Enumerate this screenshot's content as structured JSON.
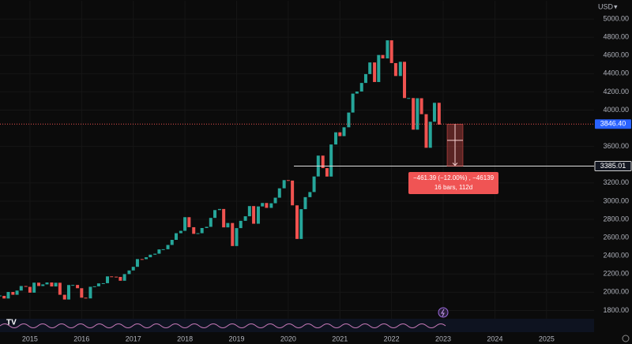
{
  "chart_data": {
    "type": "candlestick",
    "currency": "USD",
    "x": [
      2014.42,
      2014.5,
      2014.58,
      2014.67,
      2014.75,
      2014.83,
      2014.92,
      2015,
      2015.08,
      2015.17,
      2015.25,
      2015.33,
      2015.42,
      2015.5,
      2015.58,
      2015.67,
      2015.75,
      2015.83,
      2015.92,
      2016,
      2016.08,
      2016.17,
      2016.25,
      2016.33,
      2016.42,
      2016.5,
      2016.58,
      2016.67,
      2016.75,
      2016.83,
      2016.92,
      2017,
      2017.08,
      2017.17,
      2017.25,
      2017.33,
      2017.42,
      2017.5,
      2017.58,
      2017.67,
      2017.75,
      2017.83,
      2017.92,
      2018,
      2018.08,
      2018.17,
      2018.25,
      2018.33,
      2018.42,
      2018.5,
      2018.58,
      2018.67,
      2018.75,
      2018.83,
      2018.92,
      2019,
      2019.08,
      2019.17,
      2019.25,
      2019.33,
      2019.42,
      2019.5,
      2019.58,
      2019.67,
      2019.75,
      2019.83,
      2019.92,
      2020,
      2020.08,
      2020.17,
      2020.25,
      2020.33,
      2020.42,
      2020.5,
      2020.58,
      2020.67,
      2020.75,
      2020.83,
      2020.92,
      2021,
      2021.08,
      2021.17,
      2021.25,
      2021.33,
      2021.42,
      2021.5,
      2021.58,
      2021.67,
      2021.75,
      2021.83,
      2021.92,
      2022,
      2022.08,
      2022.17,
      2022.25,
      2022.33,
      2022.42,
      2022.5,
      2022.58,
      2022.67,
      2022.75,
      2022.83,
      2022.92
    ],
    "values": [
      1960,
      1931,
      2003,
      1972,
      2018,
      2068,
      2059,
      1995,
      2105,
      2068,
      2086,
      2107,
      2063,
      2104,
      1972,
      1920,
      2079,
      2080,
      2044,
      1940,
      1932,
      2060,
      2065,
      2097,
      2099,
      2174,
      2171,
      2168,
      2126,
      2199,
      2239,
      2279,
      2364,
      2363,
      2384,
      2412,
      2423,
      2470,
      2472,
      2519,
      2575,
      2648,
      2674,
      2824,
      2714,
      2641,
      2648,
      2705,
      2718,
      2816,
      2902,
      2914,
      2712,
      2760,
      2507,
      2704,
      2784,
      2834,
      2946,
      2752,
      2942,
      2980,
      2926,
      2977,
      3038,
      3141,
      3231,
      3226,
      2954,
      2585,
      2912,
      3044,
      3100,
      3271,
      3500,
      3363,
      3270,
      3622,
      3756,
      3714,
      3811,
      3973,
      4181,
      4204,
      4298,
      4395,
      4523,
      4308,
      4605,
      4567,
      4766,
      4516,
      4374,
      4530,
      4132,
      4132,
      3785,
      4130,
      3955,
      3586,
      3872,
      4080,
      3840
    ],
    "up_color": "#26a69a",
    "down_color": "#ef5350",
    "xlim": [
      2014.42,
      2025.92
    ],
    "xticks": [
      2015,
      2016,
      2017,
      2018,
      2019,
      2020,
      2021,
      2022,
      2023,
      2024,
      2025
    ],
    "ylim": [
      1700,
      5200
    ],
    "yticks": [
      {
        "value": 5000,
        "label": "5000.00"
      },
      {
        "value": 4800,
        "label": "4800.00"
      },
      {
        "value": 4600,
        "label": "4600.00"
      },
      {
        "value": 4400,
        "label": "4400.00"
      },
      {
        "value": 4200,
        "label": "4200.00"
      },
      {
        "value": 4000,
        "label": "4000.00"
      },
      {
        "value": 3600,
        "label": "3600.00"
      },
      {
        "value": 3200,
        "label": "3200.00"
      },
      {
        "value": 3000,
        "label": "3000.00"
      },
      {
        "value": 2800,
        "label": "2800.00"
      },
      {
        "value": 2600,
        "label": "2600.00"
      },
      {
        "value": 2400,
        "label": "2400.00"
      },
      {
        "value": 2200,
        "label": "2200.00"
      },
      {
        "value": 2000,
        "label": "2000.00"
      },
      {
        "value": 1800,
        "label": "1800.00"
      }
    ],
    "last_price": {
      "value": 3846.4,
      "label": "3846.40"
    },
    "horizontal_line": {
      "value": 3385.01,
      "label": "3385.01"
    },
    "measure": {
      "change_label": "−461.39 (−12.00%) , −46139",
      "bars_label": "16 bars, 112d"
    }
  }
}
